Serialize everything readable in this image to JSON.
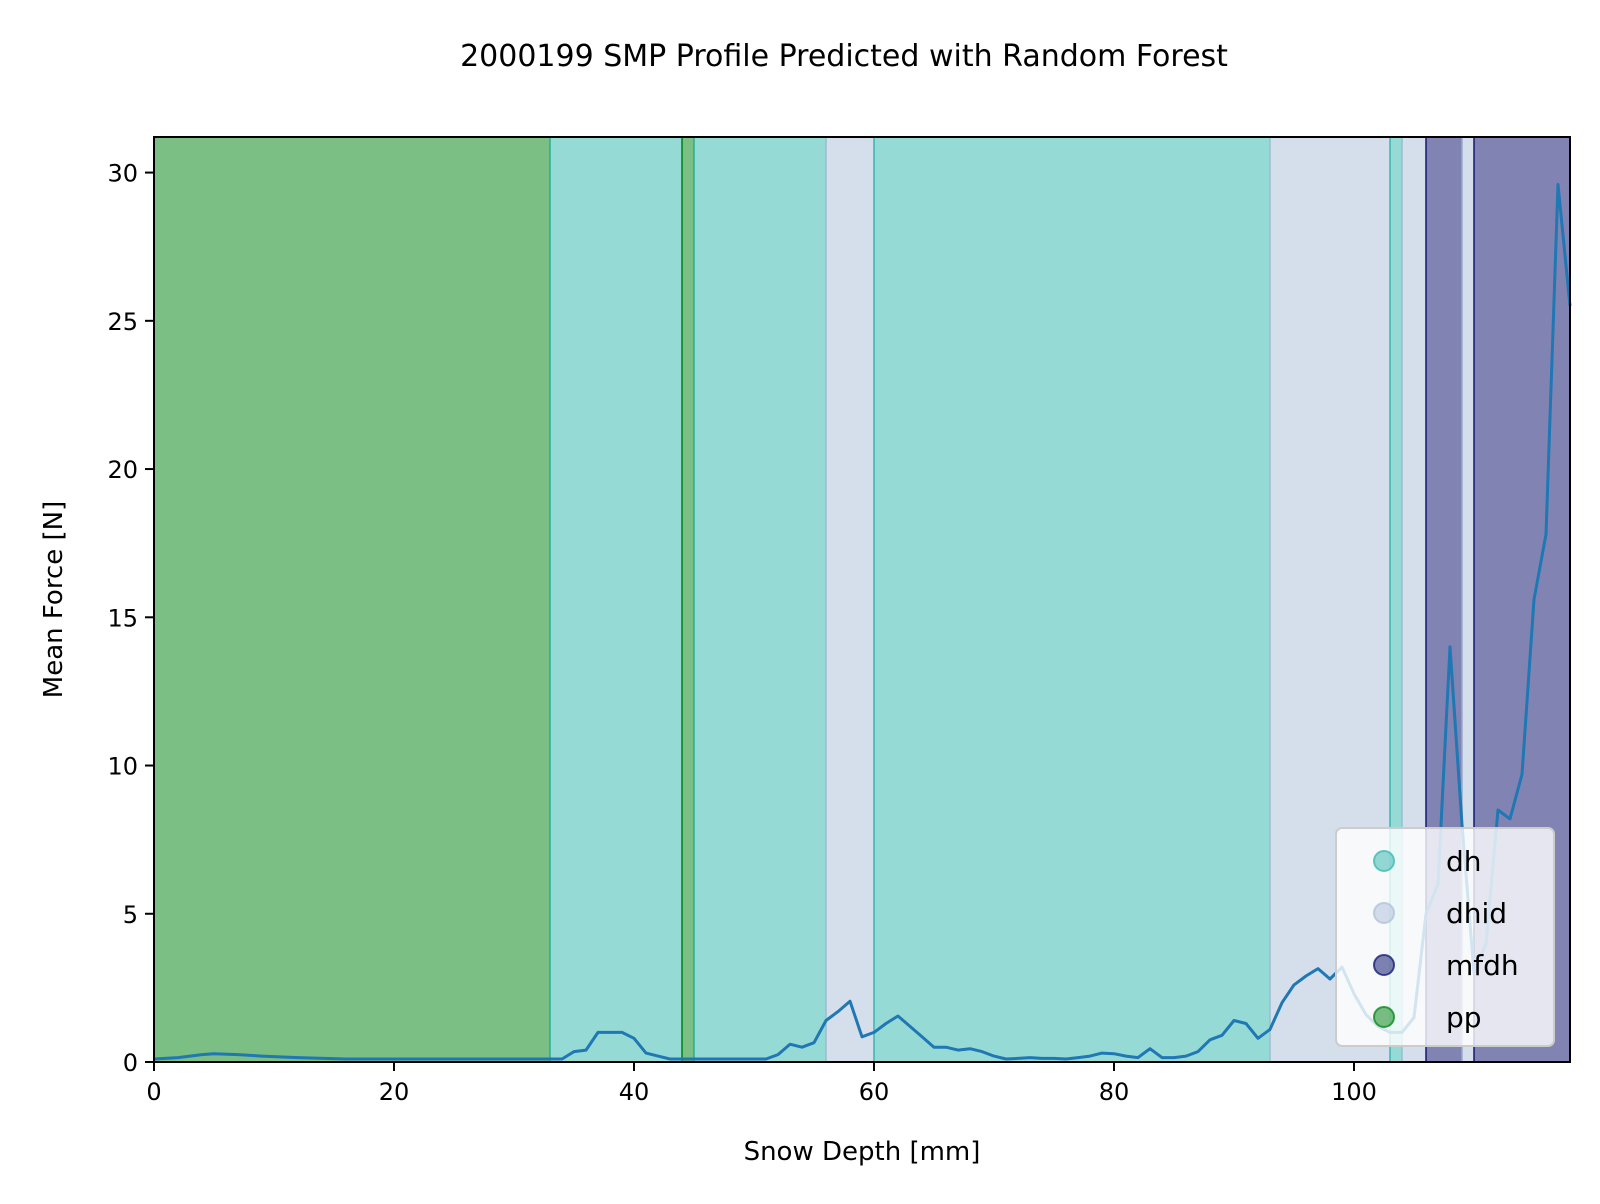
{
  "chart_data": {
    "type": "line",
    "title": "2000199 SMP Profile Predicted with Random Forest",
    "xlabel": "Snow Depth [mm]",
    "ylabel": "Mean Force [N]",
    "xlim": [
      0,
      118
    ],
    "ylim": [
      0,
      31.2
    ],
    "grid": false,
    "legend_position": "bottom-right",
    "x_ticks": [
      0,
      20,
      40,
      60,
      80,
      100
    ],
    "y_ticks": [
      0,
      5,
      10,
      15,
      20,
      25,
      30
    ],
    "classes": [
      {
        "name": "dh",
        "color": "#40bcb2"
      },
      {
        "name": "dhid",
        "color": "#b2c3db"
      },
      {
        "name": "mfdh",
        "color": "#1a1f75"
      },
      {
        "name": "pp",
        "color": "#0f8a1f"
      }
    ],
    "bands": [
      {
        "class": "pp",
        "start": 0,
        "end": 33
      },
      {
        "class": "dh",
        "start": 33,
        "end": 44
      },
      {
        "class": "pp",
        "start": 44,
        "end": 45
      },
      {
        "class": "dh",
        "start": 45,
        "end": 56
      },
      {
        "class": "dhid",
        "start": 56,
        "end": 60
      },
      {
        "class": "dh",
        "start": 60,
        "end": 93
      },
      {
        "class": "dhid",
        "start": 93,
        "end": 103
      },
      {
        "class": "dh",
        "start": 103,
        "end": 104
      },
      {
        "class": "dhid",
        "start": 104,
        "end": 106
      },
      {
        "class": "mfdh",
        "start": 106,
        "end": 109
      },
      {
        "class": "dhid",
        "start": 109,
        "end": 110
      },
      {
        "class": "mfdh",
        "start": 110,
        "end": 118
      }
    ],
    "series": [
      {
        "color": "#1f77b4",
        "x": [
          0,
          2,
          3,
          4,
          5,
          7,
          9,
          12,
          16,
          20,
          25,
          30,
          34,
          35,
          36,
          37,
          38,
          39,
          40,
          41,
          42,
          43,
          44,
          46,
          48,
          50,
          51,
          52,
          53,
          54,
          55,
          56,
          57,
          58,
          59,
          60,
          61,
          62,
          63,
          64,
          65,
          66,
          67,
          68,
          69,
          70,
          71,
          72,
          73,
          74,
          75,
          76,
          77,
          78,
          79,
          80,
          81,
          82,
          83,
          84,
          85,
          86,
          87,
          88,
          89,
          90,
          91,
          92,
          93,
          94,
          95,
          96,
          97,
          98,
          99,
          100,
          101,
          102,
          103,
          104,
          105,
          106,
          107,
          108,
          109,
          110,
          111,
          112,
          113,
          114,
          115,
          116,
          117,
          118
        ],
        "values": [
          0.1,
          0.15,
          0.2,
          0.25,
          0.28,
          0.25,
          0.2,
          0.15,
          0.1,
          0.1,
          0.1,
          0.1,
          0.1,
          0.35,
          0.4,
          1.0,
          1.0,
          1.0,
          0.8,
          0.3,
          0.2,
          0.1,
          0.1,
          0.1,
          0.1,
          0.1,
          0.1,
          0.25,
          0.6,
          0.5,
          0.65,
          1.4,
          1.7,
          2.05,
          0.85,
          1.0,
          1.3,
          1.55,
          1.2,
          0.85,
          0.5,
          0.5,
          0.4,
          0.45,
          0.35,
          0.2,
          0.1,
          0.12,
          0.15,
          0.12,
          0.12,
          0.1,
          0.15,
          0.2,
          0.3,
          0.28,
          0.2,
          0.15,
          0.45,
          0.15,
          0.15,
          0.2,
          0.35,
          0.75,
          0.9,
          1.4,
          1.3,
          0.8,
          1.1,
          2.0,
          2.6,
          2.9,
          3.15,
          2.8,
          3.2,
          2.3,
          1.6,
          1.2,
          1.0,
          1.0,
          1.5,
          5.0,
          6.0,
          14.0,
          8.0,
          3.0,
          4.0,
          8.5,
          8.2,
          9.7,
          15.6,
          17.8,
          29.6,
          25.5
        ]
      }
    ]
  }
}
